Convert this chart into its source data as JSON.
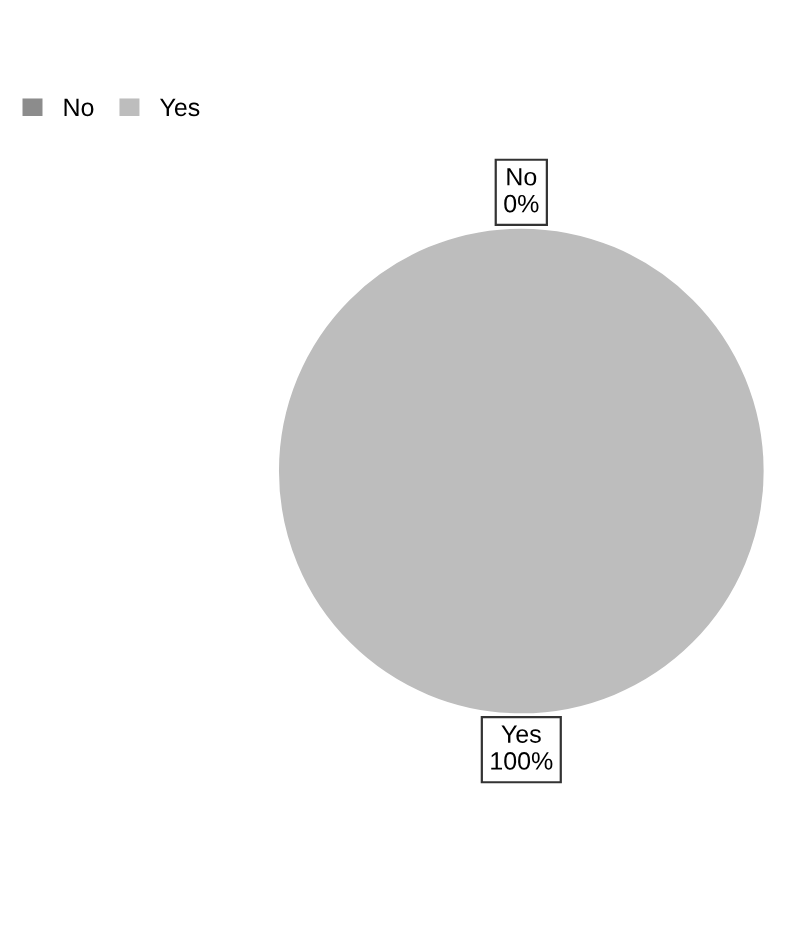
{
  "chart_data": {
    "type": "pie",
    "categories": [
      "No",
      "Yes"
    ],
    "values": [
      0,
      100
    ],
    "value_labels": [
      "0%",
      "100%"
    ],
    "colors": [
      "#8c8c8c",
      "#bdbdbd"
    ],
    "legend": "top left"
  }
}
